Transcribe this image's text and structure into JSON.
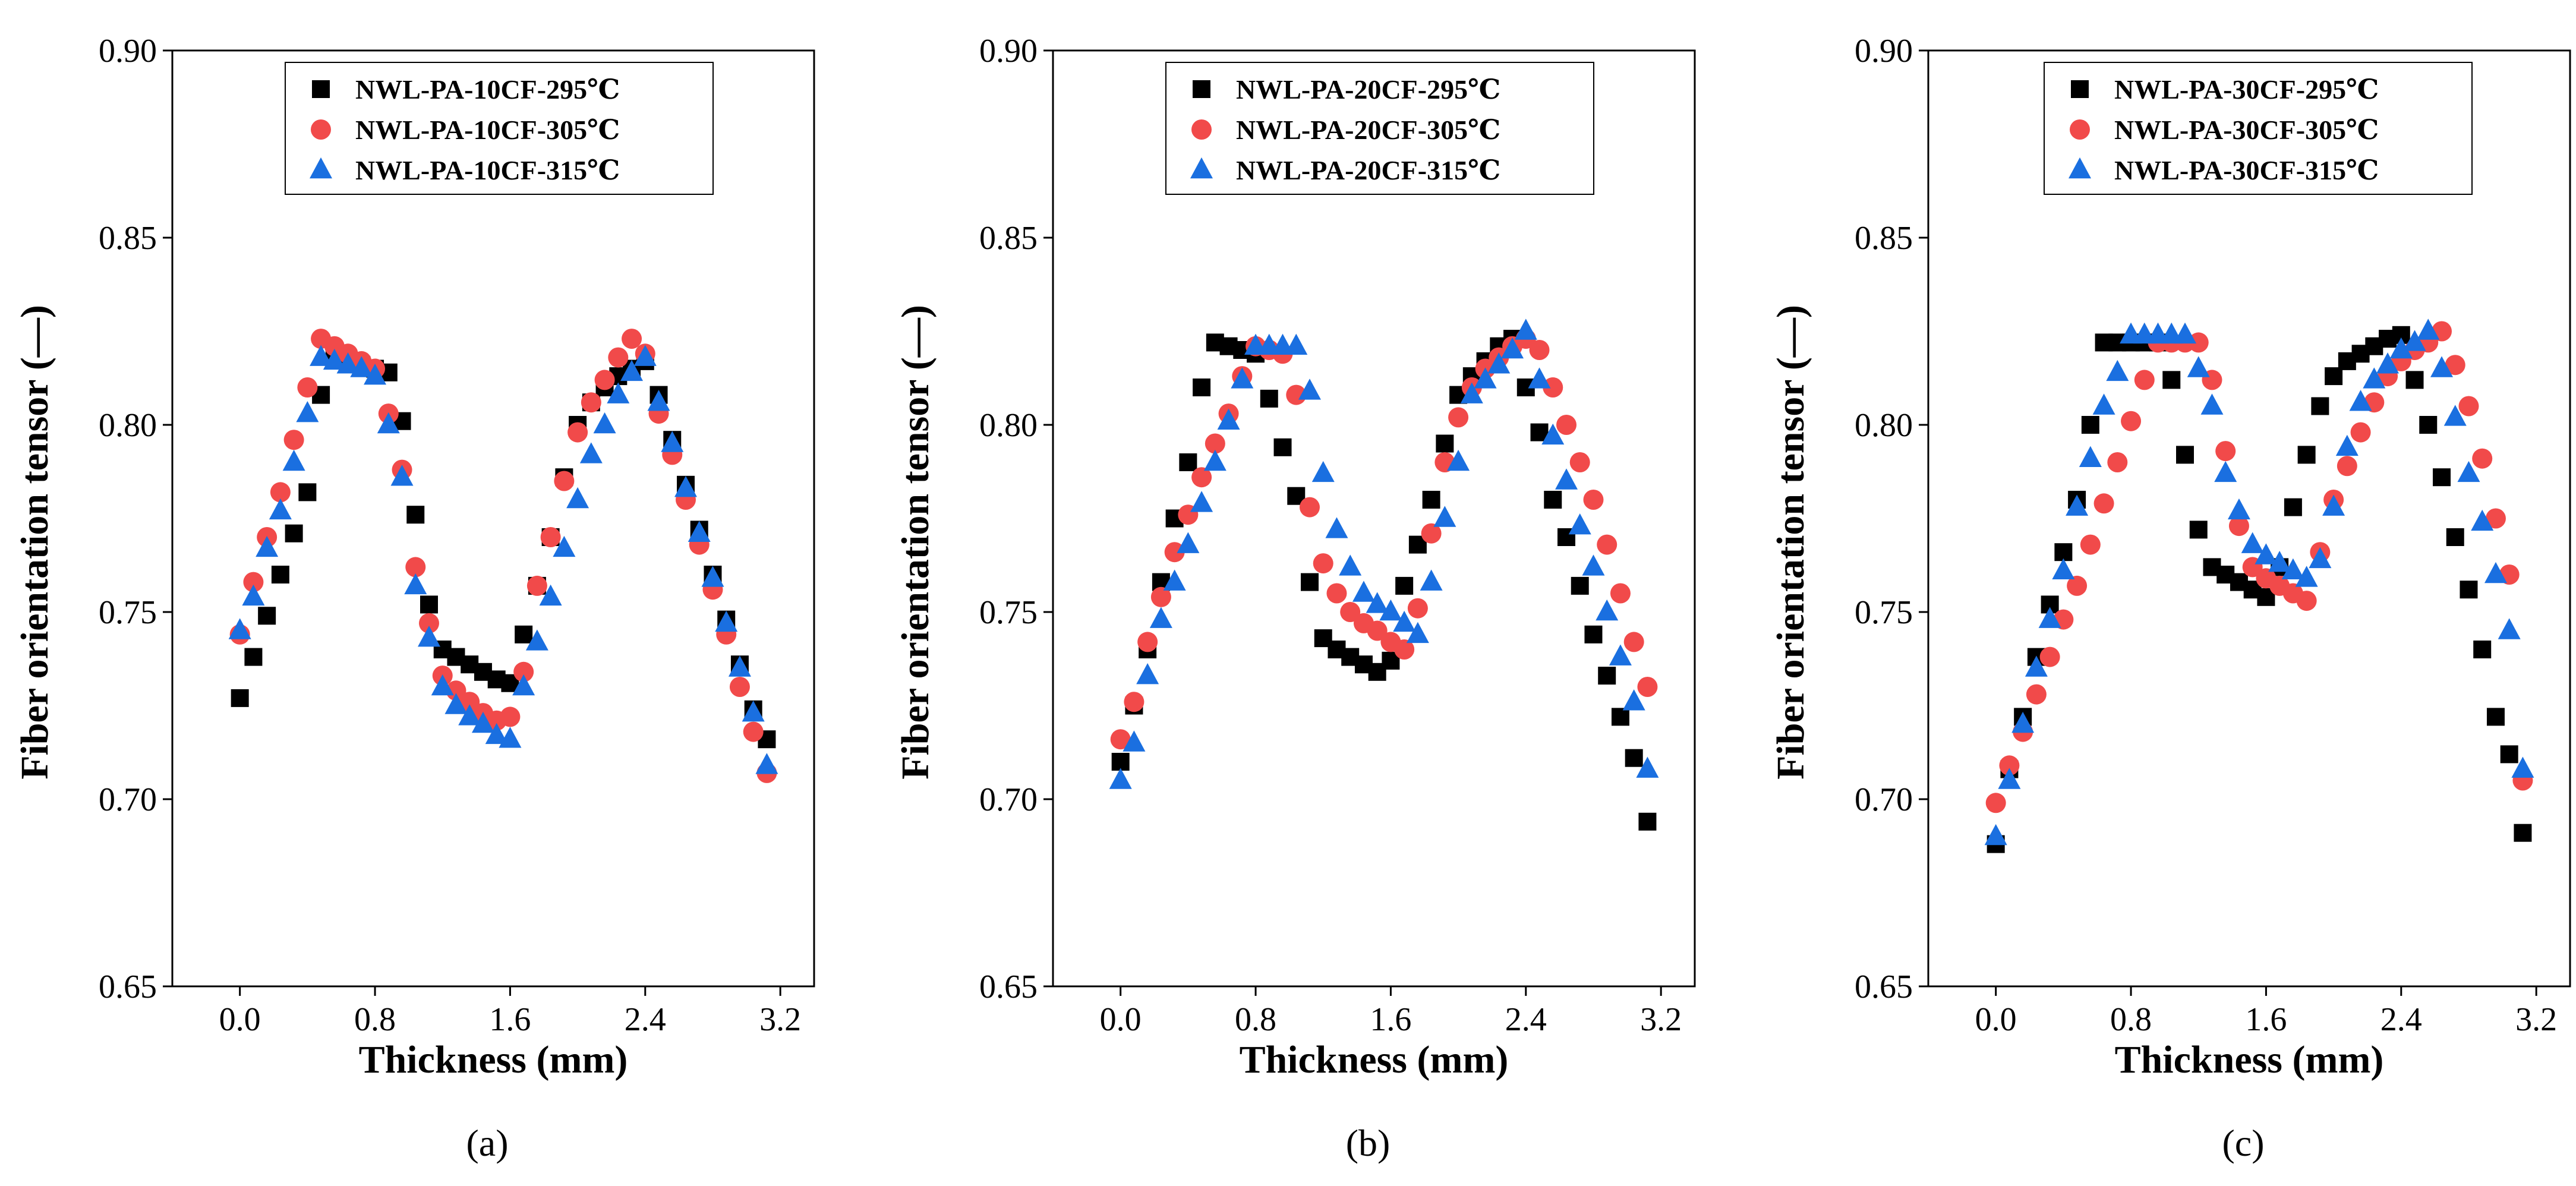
{
  "figure": {
    "panel_labels": [
      "(a)",
      "(b)",
      "(c)"
    ]
  },
  "colors": {
    "series_295": "#000000",
    "series_305": "#f14a4a",
    "series_315": "#1a6fe0"
  },
  "chart_data": [
    {
      "type": "scatter",
      "panel": "(a)",
      "xlabel": "Thickness (mm)",
      "ylabel": "Fiber orientation tensor (—)",
      "xlim": [
        -0.4,
        3.4
      ],
      "ylim": [
        0.65,
        0.9
      ],
      "xticks": [
        "0.0",
        "0.8",
        "1.6",
        "2.4",
        "3.2"
      ],
      "yticks": [
        "0.65",
        "0.70",
        "0.75",
        "0.80",
        "0.85",
        "0.90"
      ],
      "legend_position": "top-center",
      "series": [
        {
          "name": "NWL-PA-10CF-295℃",
          "marker": "square",
          "color": "#000000",
          "x": [
            0.0,
            0.08,
            0.16,
            0.24,
            0.32,
            0.4,
            0.48,
            0.56,
            0.64,
            0.72,
            0.8,
            0.88,
            0.96,
            1.04,
            1.12,
            1.2,
            1.28,
            1.36,
            1.44,
            1.52,
            1.6,
            1.68,
            1.76,
            1.84,
            1.92,
            2.0,
            2.08,
            2.16,
            2.24,
            2.32,
            2.4,
            2.48,
            2.56,
            2.64,
            2.72,
            2.8,
            2.88,
            2.96,
            3.04,
            3.12
          ],
          "y": [
            0.727,
            0.738,
            0.749,
            0.76,
            0.771,
            0.782,
            0.808,
            0.818,
            0.817,
            0.816,
            0.815,
            0.814,
            0.801,
            0.776,
            0.752,
            0.74,
            0.738,
            0.736,
            0.734,
            0.732,
            0.731,
            0.744,
            0.757,
            0.77,
            0.786,
            0.8,
            0.806,
            0.81,
            0.813,
            0.815,
            0.817,
            0.808,
            0.796,
            0.784,
            0.772,
            0.76,
            0.748,
            0.736,
            0.724,
            0.716
          ]
        },
        {
          "name": "NWL-PA-10CF-305℃",
          "marker": "circle",
          "color": "#f14a4a",
          "x": [
            0.0,
            0.08,
            0.16,
            0.24,
            0.32,
            0.4,
            0.48,
            0.56,
            0.64,
            0.72,
            0.8,
            0.88,
            0.96,
            1.04,
            1.12,
            1.2,
            1.28,
            1.36,
            1.44,
            1.52,
            1.6,
            1.68,
            1.76,
            1.84,
            1.92,
            2.0,
            2.08,
            2.16,
            2.24,
            2.32,
            2.4,
            2.48,
            2.56,
            2.64,
            2.72,
            2.8,
            2.88,
            2.96,
            3.04,
            3.12
          ],
          "y": [
            0.744,
            0.758,
            0.77,
            0.782,
            0.796,
            0.81,
            0.823,
            0.821,
            0.819,
            0.817,
            0.815,
            0.803,
            0.788,
            0.762,
            0.747,
            0.733,
            0.729,
            0.726,
            0.723,
            0.721,
            0.722,
            0.734,
            0.757,
            0.77,
            0.785,
            0.798,
            0.806,
            0.812,
            0.818,
            0.823,
            0.819,
            0.803,
            0.792,
            0.78,
            0.768,
            0.756,
            0.744,
            0.73,
            0.718,
            0.707
          ]
        },
        {
          "name": "NWL-PA-10CF-315℃",
          "marker": "triangle",
          "color": "#1a6fe0",
          "x": [
            0.0,
            0.08,
            0.16,
            0.24,
            0.32,
            0.4,
            0.48,
            0.56,
            0.64,
            0.72,
            0.8,
            0.88,
            0.96,
            1.04,
            1.12,
            1.2,
            1.28,
            1.36,
            1.44,
            1.52,
            1.6,
            1.68,
            1.76,
            1.84,
            1.92,
            2.0,
            2.08,
            2.16,
            2.24,
            2.32,
            2.4,
            2.48,
            2.56,
            2.64,
            2.72,
            2.8,
            2.88,
            2.96,
            3.04,
            3.12
          ],
          "y": [
            0.745,
            0.754,
            0.767,
            0.777,
            0.79,
            0.803,
            0.818,
            0.817,
            0.816,
            0.815,
            0.813,
            0.8,
            0.786,
            0.757,
            0.743,
            0.73,
            0.725,
            0.722,
            0.72,
            0.717,
            0.716,
            0.73,
            0.742,
            0.754,
            0.767,
            0.78,
            0.792,
            0.8,
            0.808,
            0.814,
            0.818,
            0.806,
            0.795,
            0.783,
            0.771,
            0.759,
            0.747,
            0.735,
            0.723,
            0.709
          ]
        }
      ]
    },
    {
      "type": "scatter",
      "panel": "(b)",
      "xlabel": "Thickness (mm)",
      "ylabel": "Fiber orientation tensor (—)",
      "xlim": [
        -0.4,
        3.4
      ],
      "ylim": [
        0.65,
        0.9
      ],
      "xticks": [
        "0.0",
        "0.8",
        "1.6",
        "2.4",
        "3.2"
      ],
      "yticks": [
        "0.65",
        "0.70",
        "0.75",
        "0.80",
        "0.85",
        "0.90"
      ],
      "legend_position": "top-center",
      "series": [
        {
          "name": "NWL-PA-20CF-295℃",
          "marker": "square",
          "color": "#000000",
          "x": [
            0.0,
            0.08,
            0.16,
            0.24,
            0.32,
            0.4,
            0.48,
            0.56,
            0.64,
            0.72,
            0.8,
            0.88,
            0.96,
            1.04,
            1.12,
            1.2,
            1.28,
            1.36,
            1.44,
            1.52,
            1.6,
            1.68,
            1.76,
            1.84,
            1.92,
            2.0,
            2.08,
            2.16,
            2.24,
            2.32,
            2.4,
            2.48,
            2.56,
            2.64,
            2.72,
            2.8,
            2.88,
            2.96,
            3.04,
            3.12
          ],
          "y": [
            0.71,
            0.725,
            0.74,
            0.758,
            0.775,
            0.79,
            0.81,
            0.822,
            0.821,
            0.82,
            0.819,
            0.807,
            0.794,
            0.781,
            0.758,
            0.743,
            0.74,
            0.738,
            0.736,
            0.734,
            0.737,
            0.757,
            0.768,
            0.78,
            0.795,
            0.808,
            0.813,
            0.817,
            0.821,
            0.823,
            0.81,
            0.798,
            0.78,
            0.77,
            0.757,
            0.744,
            0.733,
            0.722,
            0.711,
            0.694
          ]
        },
        {
          "name": "NWL-PA-20CF-305℃",
          "marker": "circle",
          "color": "#f14a4a",
          "x": [
            0.0,
            0.08,
            0.16,
            0.24,
            0.32,
            0.4,
            0.48,
            0.56,
            0.64,
            0.72,
            0.8,
            0.88,
            0.96,
            1.04,
            1.12,
            1.2,
            1.28,
            1.36,
            1.44,
            1.52,
            1.6,
            1.68,
            1.76,
            1.84,
            1.92,
            2.0,
            2.08,
            2.16,
            2.24,
            2.32,
            2.4,
            2.48,
            2.56,
            2.64,
            2.72,
            2.8,
            2.88,
            2.96,
            3.04,
            3.12
          ],
          "y": [
            0.716,
            0.726,
            0.742,
            0.754,
            0.766,
            0.776,
            0.786,
            0.795,
            0.803,
            0.813,
            0.821,
            0.82,
            0.819,
            0.808,
            0.778,
            0.763,
            0.755,
            0.75,
            0.747,
            0.745,
            0.742,
            0.74,
            0.751,
            0.771,
            0.79,
            0.802,
            0.81,
            0.815,
            0.818,
            0.821,
            0.823,
            0.82,
            0.81,
            0.8,
            0.79,
            0.78,
            0.768,
            0.755,
            0.742,
            0.73
          ]
        },
        {
          "name": "NWL-PA-20CF-315℃",
          "marker": "triangle",
          "color": "#1a6fe0",
          "x": [
            0.0,
            0.08,
            0.16,
            0.24,
            0.32,
            0.4,
            0.48,
            0.56,
            0.64,
            0.72,
            0.8,
            0.88,
            0.96,
            1.04,
            1.12,
            1.2,
            1.28,
            1.36,
            1.44,
            1.52,
            1.6,
            1.68,
            1.76,
            1.84,
            1.92,
            2.0,
            2.08,
            2.16,
            2.24,
            2.32,
            2.4,
            2.48,
            2.56,
            2.64,
            2.72,
            2.8,
            2.88,
            2.96,
            3.04,
            3.12
          ],
          "y": [
            0.705,
            0.715,
            0.733,
            0.748,
            0.758,
            0.768,
            0.779,
            0.79,
            0.801,
            0.812,
            0.821,
            0.821,
            0.821,
            0.821,
            0.809,
            0.787,
            0.772,
            0.762,
            0.755,
            0.752,
            0.75,
            0.747,
            0.744,
            0.758,
            0.775,
            0.79,
            0.808,
            0.812,
            0.816,
            0.82,
            0.825,
            0.812,
            0.797,
            0.785,
            0.773,
            0.762,
            0.75,
            0.738,
            0.726,
            0.708
          ]
        }
      ]
    },
    {
      "type": "scatter",
      "panel": "(c)",
      "xlabel": "Thickness (mm)",
      "ylabel": "Fiber orientation tensor (—)",
      "xlim": [
        -0.4,
        3.4
      ],
      "ylim": [
        0.65,
        0.9
      ],
      "xticks": [
        "0.0",
        "0.8",
        "1.6",
        "2.4",
        "3.2"
      ],
      "yticks": [
        "0.65",
        "0.70",
        "0.75",
        "0.80",
        "0.85",
        "0.90"
      ],
      "legend_position": "top-center",
      "series": [
        {
          "name": "NWL-PA-30CF-295℃",
          "marker": "square",
          "color": "#000000",
          "x": [
            0.0,
            0.08,
            0.16,
            0.24,
            0.32,
            0.4,
            0.48,
            0.56,
            0.64,
            0.72,
            0.8,
            0.88,
            0.96,
            1.04,
            1.12,
            1.2,
            1.28,
            1.36,
            1.44,
            1.52,
            1.6,
            1.68,
            1.76,
            1.84,
            1.92,
            2.0,
            2.08,
            2.16,
            2.24,
            2.32,
            2.4,
            2.48,
            2.56,
            2.64,
            2.72,
            2.8,
            2.88,
            2.96,
            3.04,
            3.12
          ],
          "y": [
            0.688,
            0.708,
            0.722,
            0.738,
            0.752,
            0.766,
            0.78,
            0.8,
            0.822,
            0.822,
            0.822,
            0.822,
            0.822,
            0.812,
            0.792,
            0.772,
            0.762,
            0.76,
            0.758,
            0.756,
            0.754,
            0.762,
            0.778,
            0.792,
            0.805,
            0.813,
            0.817,
            0.819,
            0.821,
            0.823,
            0.824,
            0.812,
            0.8,
            0.786,
            0.77,
            0.756,
            0.74,
            0.722,
            0.712,
            0.691
          ]
        },
        {
          "name": "NWL-PA-30CF-305℃",
          "marker": "circle",
          "color": "#f14a4a",
          "x": [
            0.0,
            0.08,
            0.16,
            0.24,
            0.32,
            0.4,
            0.48,
            0.56,
            0.64,
            0.72,
            0.8,
            0.88,
            0.96,
            1.04,
            1.12,
            1.2,
            1.28,
            1.36,
            1.44,
            1.52,
            1.6,
            1.68,
            1.76,
            1.84,
            1.92,
            2.0,
            2.08,
            2.16,
            2.24,
            2.32,
            2.4,
            2.48,
            2.56,
            2.64,
            2.72,
            2.8,
            2.88,
            2.96,
            3.04,
            3.12
          ],
          "y": [
            0.699,
            0.709,
            0.718,
            0.728,
            0.738,
            0.748,
            0.757,
            0.768,
            0.779,
            0.79,
            0.801,
            0.812,
            0.822,
            0.822,
            0.822,
            0.822,
            0.812,
            0.793,
            0.773,
            0.762,
            0.759,
            0.757,
            0.755,
            0.753,
            0.766,
            0.78,
            0.789,
            0.798,
            0.806,
            0.813,
            0.817,
            0.82,
            0.822,
            0.825,
            0.816,
            0.805,
            0.791,
            0.775,
            0.76,
            0.705
          ]
        },
        {
          "name": "NWL-PA-30CF-315℃",
          "marker": "triangle",
          "color": "#1a6fe0",
          "x": [
            0.0,
            0.08,
            0.16,
            0.24,
            0.32,
            0.4,
            0.48,
            0.56,
            0.64,
            0.72,
            0.8,
            0.88,
            0.96,
            1.04,
            1.12,
            1.2,
            1.28,
            1.36,
            1.44,
            1.52,
            1.6,
            1.68,
            1.76,
            1.84,
            1.92,
            2.0,
            2.08,
            2.16,
            2.24,
            2.32,
            2.4,
            2.48,
            2.56,
            2.64,
            2.72,
            2.8,
            2.88,
            2.96,
            3.04,
            3.12
          ],
          "y": [
            0.69,
            0.705,
            0.72,
            0.735,
            0.748,
            0.761,
            0.778,
            0.791,
            0.805,
            0.814,
            0.824,
            0.824,
            0.824,
            0.824,
            0.824,
            0.815,
            0.805,
            0.787,
            0.777,
            0.768,
            0.765,
            0.763,
            0.761,
            0.759,
            0.764,
            0.778,
            0.794,
            0.806,
            0.812,
            0.816,
            0.82,
            0.822,
            0.825,
            0.815,
            0.802,
            0.787,
            0.774,
            0.76,
            0.745,
            0.708
          ]
        }
      ]
    }
  ]
}
